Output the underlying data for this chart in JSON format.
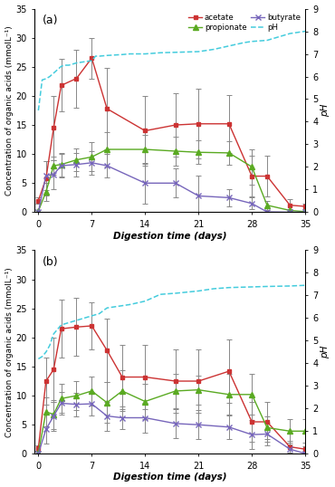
{
  "panel_a": {
    "acetate_x": [
      0,
      1,
      2,
      3,
      5,
      7,
      9,
      14,
      18,
      21,
      25,
      28,
      30,
      33,
      35
    ],
    "acetate_y": [
      2.0,
      5.8,
      14.5,
      21.8,
      23.0,
      26.5,
      17.8,
      14.0,
      15.0,
      15.2,
      15.2,
      6.2,
      6.2,
      1.2,
      1.0
    ],
    "acetate_err": [
      0.5,
      3.0,
      5.5,
      4.5,
      5.0,
      3.5,
      7.0,
      6.0,
      5.5,
      6.0,
      5.0,
      3.5,
      3.5,
      1.0,
      0.5
    ],
    "propionate_x": [
      0,
      1,
      2,
      3,
      5,
      7,
      9,
      14,
      18,
      21,
      25,
      28,
      30,
      33,
      35
    ],
    "propionate_y": [
      0.2,
      3.5,
      8.0,
      8.2,
      9.0,
      9.5,
      10.8,
      10.8,
      10.5,
      10.3,
      10.2,
      7.8,
      1.2,
      0.3,
      0.1
    ],
    "propionate_err": [
      0.1,
      1.5,
      1.5,
      2.0,
      2.0,
      2.5,
      3.0,
      2.5,
      2.5,
      2.0,
      2.0,
      3.0,
      0.8,
      0.3,
      0.1
    ],
    "butyrate_x": [
      0,
      1,
      2,
      3,
      5,
      7,
      9,
      14,
      18,
      21,
      25,
      28,
      30,
      33,
      35
    ],
    "butyrate_y": [
      0.05,
      6.3,
      6.5,
      8.0,
      8.2,
      8.5,
      8.0,
      5.0,
      5.0,
      2.8,
      2.5,
      1.5,
      0.05,
      0.0,
      0.0
    ],
    "butyrate_err": [
      0.02,
      2.5,
      2.5,
      2.0,
      2.0,
      2.0,
      2.0,
      3.5,
      2.5,
      3.5,
      1.5,
      1.0,
      0.05,
      0.05,
      0.05
    ],
    "pH_x": [
      0,
      0.5,
      1.0,
      1.5,
      2.0,
      2.5,
      3.0,
      3.5,
      4.0,
      5.0,
      6.0,
      7.0,
      7.5,
      8.0,
      9.0,
      10.0,
      11.0,
      12.0,
      14.0,
      16.0,
      18.0,
      21.0,
      23.0,
      25.0,
      27.0,
      28.0,
      30.0,
      33.0,
      35.0
    ],
    "pH_y": [
      4.5,
      5.85,
      5.9,
      6.0,
      6.15,
      6.3,
      6.45,
      6.5,
      6.5,
      6.6,
      6.65,
      6.7,
      6.9,
      6.9,
      6.93,
      6.95,
      6.97,
      7.0,
      7.0,
      7.05,
      7.07,
      7.1,
      7.2,
      7.35,
      7.5,
      7.55,
      7.6,
      7.9,
      8.0
    ]
  },
  "panel_b": {
    "acetate_x": [
      0,
      1,
      2,
      3,
      5,
      7,
      9,
      11,
      14,
      18,
      21,
      25,
      28,
      30,
      33,
      35
    ],
    "acetate_y": [
      1.0,
      12.5,
      14.5,
      21.5,
      21.8,
      22.0,
      17.8,
      13.2,
      13.2,
      12.5,
      12.5,
      14.2,
      5.5,
      5.5,
      1.2,
      0.8
    ],
    "acetate_err": [
      0.5,
      4.0,
      5.5,
      5.0,
      5.0,
      4.0,
      5.5,
      5.5,
      5.5,
      5.5,
      5.5,
      5.5,
      3.5,
      3.5,
      1.0,
      0.5
    ],
    "propionate_x": [
      0,
      1,
      2,
      3,
      5,
      7,
      9,
      11,
      14,
      18,
      21,
      25,
      28,
      30,
      33,
      35
    ],
    "propionate_y": [
      0.2,
      7.2,
      6.8,
      9.5,
      10.0,
      10.8,
      8.8,
      10.8,
      9.0,
      10.8,
      11.0,
      10.2,
      10.2,
      4.5,
      3.9,
      3.9
    ],
    "propionate_err": [
      0.1,
      2.5,
      2.5,
      2.5,
      2.5,
      2.5,
      3.5,
      3.5,
      3.0,
      3.0,
      2.5,
      3.5,
      3.5,
      2.0,
      2.0,
      2.0
    ],
    "butyrate_x": [
      0,
      1,
      2,
      3,
      5,
      7,
      9,
      11,
      14,
      18,
      21,
      25,
      28,
      30,
      33,
      35
    ],
    "butyrate_y": [
      0.05,
      4.2,
      6.5,
      8.7,
      8.5,
      8.6,
      6.5,
      6.2,
      6.2,
      5.2,
      5.0,
      4.6,
      3.3,
      3.4,
      0.8,
      0.05
    ],
    "butyrate_err": [
      0.02,
      2.5,
      2.5,
      2.0,
      2.0,
      2.0,
      2.5,
      2.0,
      2.5,
      2.5,
      2.5,
      2.0,
      2.5,
      2.0,
      0.8,
      0.05
    ],
    "pH_x": [
      0,
      0.5,
      1.0,
      1.5,
      2.0,
      3.0,
      4.0,
      5.0,
      6.0,
      7.0,
      8.0,
      9.0,
      10.0,
      11.0,
      12.0,
      14.0,
      16.0,
      18.0,
      21.0,
      23.0,
      25.0,
      28.0,
      30.0,
      33.0,
      35.0
    ],
    "pH_y": [
      4.2,
      4.3,
      4.5,
      4.8,
      5.3,
      5.7,
      5.8,
      5.9,
      6.0,
      6.1,
      6.2,
      6.45,
      6.5,
      6.55,
      6.6,
      6.75,
      7.05,
      7.1,
      7.2,
      7.3,
      7.35,
      7.38,
      7.4,
      7.42,
      7.45
    ]
  },
  "colors": {
    "acetate": "#cc3333",
    "propionate": "#5aaa22",
    "butyrate": "#7766bb",
    "pH": "#44ccdd"
  },
  "ylim_left": [
    0,
    35
  ],
  "ylim_right": [
    0,
    9
  ],
  "xlim": [
    -0.5,
    35
  ],
  "xticks": [
    0,
    7,
    14,
    21,
    28,
    35
  ],
  "yticks_left": [
    0,
    5,
    10,
    15,
    20,
    25,
    30,
    35
  ],
  "yticks_right": [
    0,
    1,
    2,
    3,
    4,
    5,
    6,
    7,
    8,
    9
  ],
  "ylabel_left": "Concentration of organic acids (mmolL⁻¹)",
  "ylabel_right": "pH",
  "xlabel": "Digestion time (days)",
  "label_a": "(a)",
  "label_b": "(b)"
}
